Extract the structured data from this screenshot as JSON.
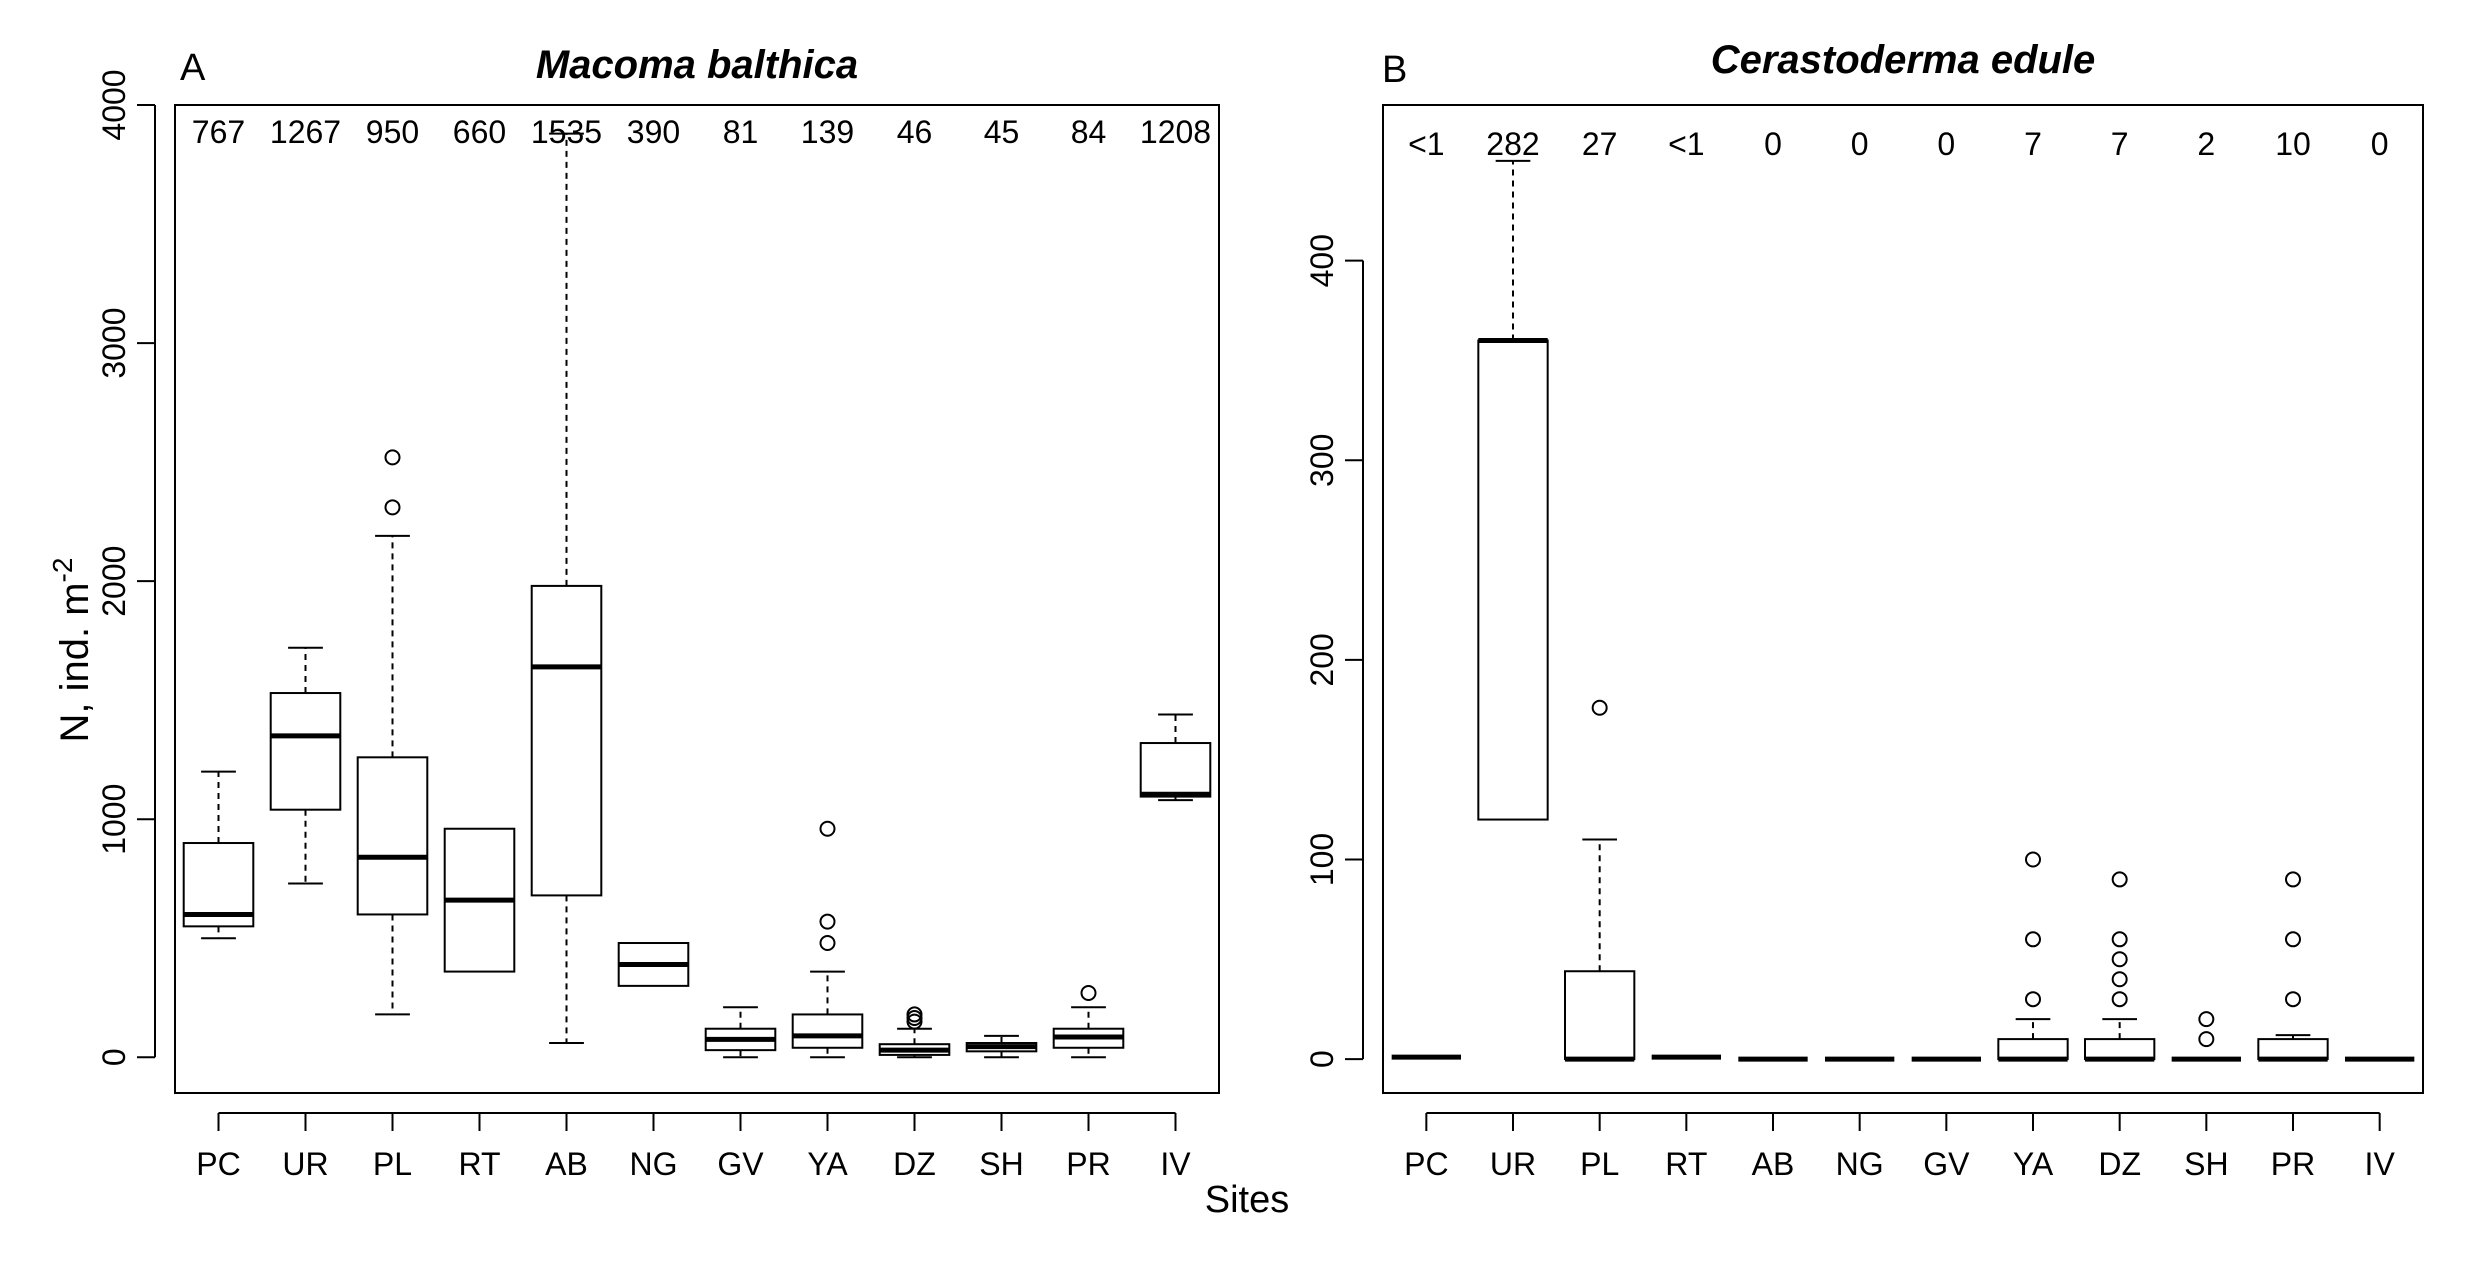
{
  "figure": {
    "shared_xlabel": "Sites",
    "ylabel_main": "N, ind. m",
    "ylabel_sup": "-2"
  },
  "chart_data": [
    {
      "type": "boxplot",
      "panel_letter": "A",
      "title": "Macoma balthica",
      "xlabel": "Sites",
      "ylabel": "N, ind. m-2",
      "ylim": [
        -150,
        4000
      ],
      "yticks": [
        0,
        1000,
        2000,
        3000,
        4000
      ],
      "ytick_labels": [
        "0",
        "1000",
        "2000",
        "3000",
        "4000"
      ],
      "categories": [
        "PC",
        "UR",
        "PL",
        "RT",
        "AB",
        "NG",
        "GV",
        "YA",
        "DZ",
        "SH",
        "PR",
        "IV"
      ],
      "annotations": [
        "767",
        "1267",
        "950",
        "660",
        "1535",
        "390",
        "81",
        "139",
        "46",
        "45",
        "84",
        "1208"
      ],
      "boxes": [
        {
          "site": "PC",
          "wlo": 500,
          "q1": 550,
          "med": 600,
          "q3": 900,
          "whi": 1200,
          "outliers": []
        },
        {
          "site": "UR",
          "wlo": 730,
          "q1": 1040,
          "med": 1350,
          "q3": 1530,
          "whi": 1720,
          "outliers": []
        },
        {
          "site": "PL",
          "wlo": 180,
          "q1": 600,
          "med": 840,
          "q3": 1260,
          "whi": 2190,
          "outliers": [
            2310,
            2520
          ]
        },
        {
          "site": "RT",
          "wlo": 360,
          "q1": 360,
          "med": 660,
          "q3": 960,
          "whi": 960,
          "outliers": []
        },
        {
          "site": "AB",
          "wlo": 60,
          "q1": 680,
          "med": 1640,
          "q3": 1980,
          "whi": 3880,
          "outliers": []
        },
        {
          "site": "NG",
          "wlo": 300,
          "q1": 300,
          "med": 390,
          "q3": 480,
          "whi": 480,
          "outliers": []
        },
        {
          "site": "GV",
          "wlo": 0,
          "q1": 30,
          "med": 75,
          "q3": 120,
          "whi": 210,
          "outliers": []
        },
        {
          "site": "YA",
          "wlo": 0,
          "q1": 40,
          "med": 90,
          "q3": 180,
          "whi": 360,
          "outliers": [
            480,
            570,
            960
          ]
        },
        {
          "site": "DZ",
          "wlo": 0,
          "q1": 10,
          "med": 30,
          "q3": 55,
          "whi": 120,
          "outliers": [
            150,
            165,
            180
          ]
        },
        {
          "site": "SH",
          "wlo": 0,
          "q1": 25,
          "med": 45,
          "q3": 60,
          "whi": 90,
          "outliers": []
        },
        {
          "site": "PR",
          "wlo": 0,
          "q1": 40,
          "med": 85,
          "q3": 120,
          "whi": 210,
          "outliers": [
            270
          ]
        },
        {
          "site": "IV",
          "wlo": 1080,
          "q1": 1095,
          "med": 1105,
          "q3": 1320,
          "whi": 1440,
          "outliers": []
        }
      ]
    },
    {
      "type": "boxplot",
      "panel_letter": "B",
      "title": "Cerastoderma edule",
      "xlabel": "Sites",
      "ylabel": "N, ind. m-2",
      "ylim": [
        -17,
        478
      ],
      "yticks": [
        0,
        100,
        200,
        300,
        400
      ],
      "ytick_labels": [
        "0",
        "100",
        "200",
        "300",
        "400"
      ],
      "categories": [
        "PC",
        "UR",
        "PL",
        "RT",
        "AB",
        "NG",
        "GV",
        "YA",
        "DZ",
        "SH",
        "PR",
        "IV"
      ],
      "annotations": [
        "<1",
        "282",
        "27",
        "<1",
        "0",
        "0",
        "0",
        "7",
        "7",
        "2",
        "10",
        "0"
      ],
      "boxes": [
        {
          "site": "PC",
          "wlo": 1,
          "q1": 1,
          "med": 1,
          "q3": 1,
          "whi": 1,
          "outliers": []
        },
        {
          "site": "UR",
          "wlo": 120,
          "q1": 120,
          "med": 360,
          "q3": 360,
          "whi": 450,
          "outliers": []
        },
        {
          "site": "PL",
          "wlo": 0,
          "q1": 0,
          "med": 0,
          "q3": 44,
          "whi": 110,
          "outliers": [
            176
          ]
        },
        {
          "site": "RT",
          "wlo": 1,
          "q1": 1,
          "med": 1,
          "q3": 1,
          "whi": 1,
          "outliers": []
        },
        {
          "site": "AB",
          "wlo": 0,
          "q1": 0,
          "med": 0,
          "q3": 0,
          "whi": 0,
          "outliers": []
        },
        {
          "site": "NG",
          "wlo": 0,
          "q1": 0,
          "med": 0,
          "q3": 0,
          "whi": 0,
          "outliers": []
        },
        {
          "site": "GV",
          "wlo": 0,
          "q1": 0,
          "med": 0,
          "q3": 0,
          "whi": 0,
          "outliers": []
        },
        {
          "site": "YA",
          "wlo": 0,
          "q1": 0,
          "med": 0,
          "q3": 10,
          "whi": 20,
          "outliers": [
            30,
            60,
            100
          ]
        },
        {
          "site": "DZ",
          "wlo": 0,
          "q1": 0,
          "med": 0,
          "q3": 10,
          "whi": 20,
          "outliers": [
            30,
            40,
            50,
            60,
            90
          ]
        },
        {
          "site": "SH",
          "wlo": 0,
          "q1": 0,
          "med": 0,
          "q3": 0,
          "whi": 0,
          "outliers": [
            10,
            20
          ]
        },
        {
          "site": "PR",
          "wlo": 0,
          "q1": 0,
          "med": 0,
          "q3": 10,
          "whi": 12,
          "outliers": [
            30,
            60,
            90
          ]
        },
        {
          "site": "IV",
          "wlo": 0,
          "q1": 0,
          "med": 0,
          "q3": 0,
          "whi": 0,
          "outliers": []
        }
      ]
    }
  ]
}
